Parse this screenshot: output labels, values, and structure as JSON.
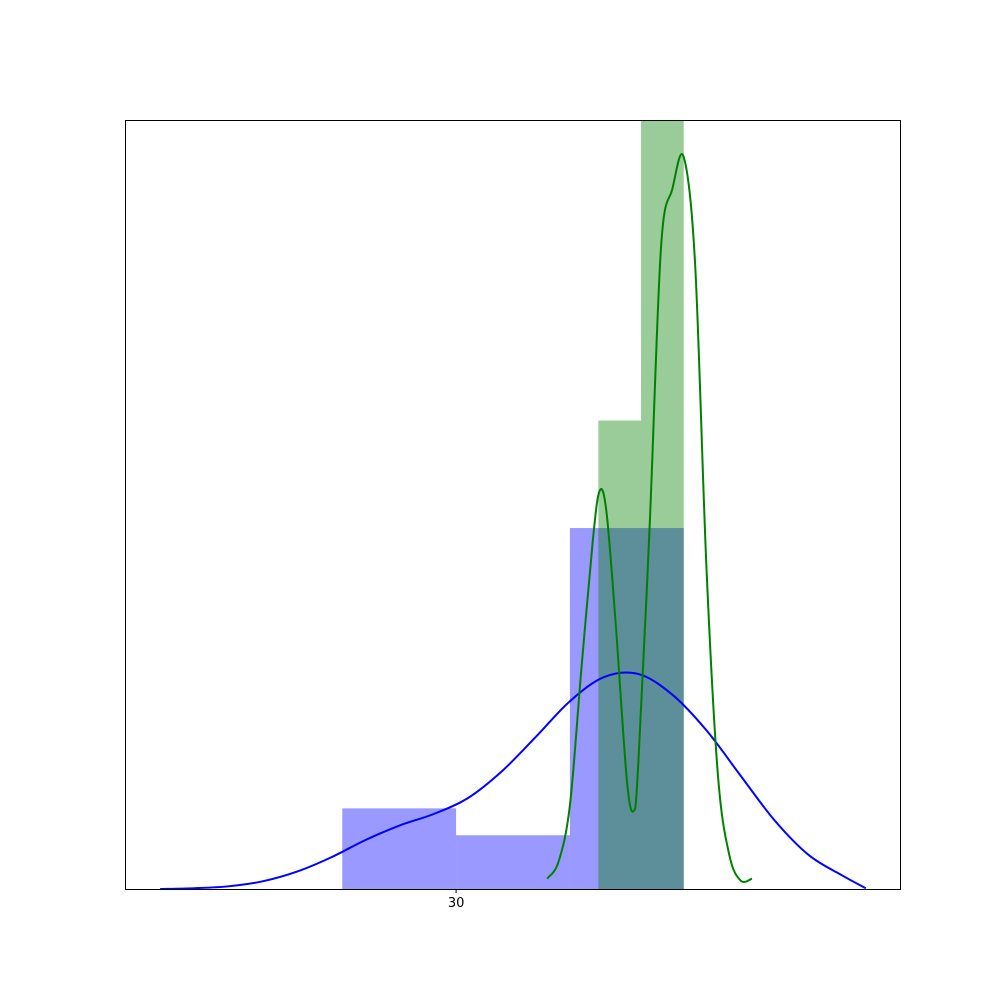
{
  "chart_data": {
    "type": "bar",
    "title": "",
    "xlabel": "",
    "ylabel": "",
    "xlim": [
      15.5,
      49.5
    ],
    "ylim": [
      0,
      0.2
    ],
    "grid": false,
    "legend": "none",
    "xticks": [
      {
        "value": 30,
        "label": "30"
      }
    ],
    "yticks": [],
    "series": [
      {
        "kind": "histogram",
        "color": "#0000ff",
        "opacity": 0.4,
        "bins": [
          {
            "x0": 25.0,
            "x1": 30.0,
            "y": 0.021
          },
          {
            "x0": 30.0,
            "x1": 35.0,
            "y": 0.014
          },
          {
            "x0": 35.0,
            "x1": 40.0,
            "y": 0.094
          }
        ]
      },
      {
        "kind": "histogram",
        "color": "#008000",
        "opacity": 0.4,
        "bins": [
          {
            "x0": 36.25,
            "x1": 38.125,
            "y": 0.122
          },
          {
            "x0": 38.125,
            "x1": 40.0,
            "y": 0.2
          }
        ]
      },
      {
        "kind": "kde",
        "color": "#0000ff",
        "points": [
          [
            17.0,
            0.0
          ],
          [
            18.5,
            0.0002
          ],
          [
            20.0,
            0.0007
          ],
          [
            21.5,
            0.002
          ],
          [
            23.0,
            0.0045
          ],
          [
            24.5,
            0.0082
          ],
          [
            26.0,
            0.0127
          ],
          [
            27.5,
            0.0165
          ],
          [
            29.0,
            0.0195
          ],
          [
            30.5,
            0.0236
          ],
          [
            32.0,
            0.0306
          ],
          [
            33.5,
            0.0396
          ],
          [
            35.0,
            0.0489
          ],
          [
            36.5,
            0.0552
          ],
          [
            38.0,
            0.056
          ],
          [
            39.5,
            0.0506
          ],
          [
            41.0,
            0.0413
          ],
          [
            42.5,
            0.0295
          ],
          [
            44.0,
            0.0178
          ],
          [
            45.5,
            0.0088
          ],
          [
            47.0,
            0.0034
          ],
          [
            48.0,
            0.0002
          ]
        ]
      },
      {
        "kind": "kde",
        "color": "#008000",
        "points": [
          [
            34.0,
            0.0027
          ],
          [
            34.5,
            0.0071
          ],
          [
            35.0,
            0.0218
          ],
          [
            35.5,
            0.057
          ],
          [
            36.0,
            0.0904
          ],
          [
            36.3,
            0.1036
          ],
          [
            36.6,
            0.0985
          ],
          [
            37.0,
            0.07
          ],
          [
            37.5,
            0.0285
          ],
          [
            37.8,
            0.0203
          ],
          [
            38.0,
            0.0322
          ],
          [
            38.5,
            0.0941
          ],
          [
            39.0,
            0.1669
          ],
          [
            39.5,
            0.1823
          ],
          [
            40.0,
            0.1906
          ],
          [
            40.5,
            0.1627
          ],
          [
            41.0,
            0.0834
          ],
          [
            41.5,
            0.0298
          ],
          [
            42.0,
            0.0089
          ],
          [
            42.5,
            0.0022
          ],
          [
            43.0,
            0.0027
          ]
        ]
      }
    ]
  }
}
